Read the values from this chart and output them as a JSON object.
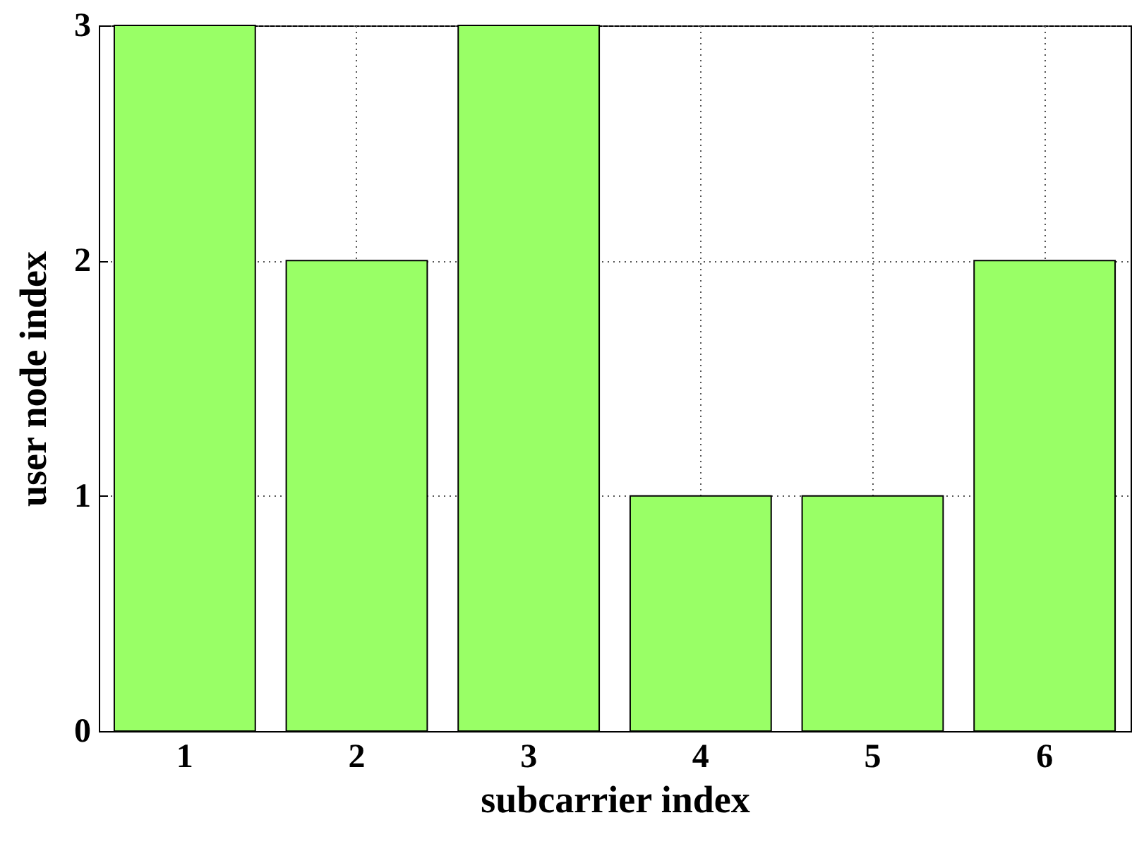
{
  "chart_data": {
    "type": "bar",
    "xlabel": "subcarrier index",
    "ylabel": "user node index",
    "categories": [
      "1",
      "2",
      "3",
      "4",
      "5",
      "6"
    ],
    "values": [
      3,
      2,
      3,
      1,
      1,
      2
    ],
    "color": "#99ff66",
    "ylim": [
      0,
      3
    ],
    "yticks": [
      0,
      1,
      2,
      3
    ],
    "grid": true
  }
}
